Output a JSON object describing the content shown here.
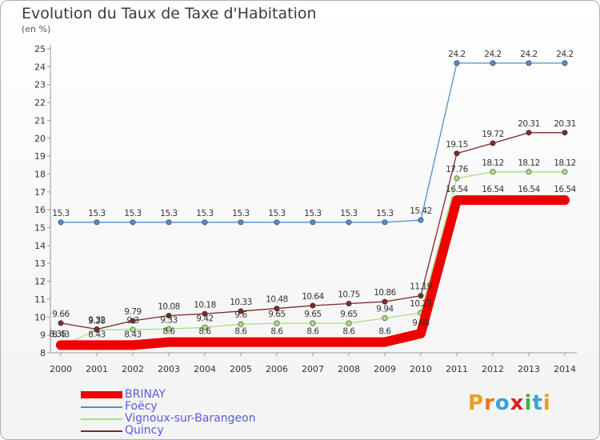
{
  "title": "Evolution du Taux de Taxe d'Habitation",
  "unit_label": "(en %)",
  "brand": {
    "text": "Proxiti",
    "letters": [
      "P",
      "r",
      "o",
      "x",
      "i",
      "t",
      "i"
    ],
    "colors": [
      "#e8a020",
      "#f07020",
      "#3aa0d8",
      "#d82020",
      "#40b040",
      "#3aa0d8",
      "#e8a020"
    ]
  },
  "chart_data": {
    "type": "line",
    "title": "Evolution du Taux de Taxe d'Habitation",
    "ylabel": "(en %)",
    "xlabel": "",
    "x": [
      "2000",
      "2001",
      "2002",
      "2003",
      "2004",
      "2005",
      "2006",
      "2007",
      "2008",
      "2009",
      "2010",
      "2011",
      "2012",
      "2013",
      "2014"
    ],
    "ylim": [
      8,
      25
    ],
    "yticks": [
      "8",
      "9",
      "10",
      "11",
      "12",
      "13",
      "14",
      "15",
      "16",
      "17",
      "18",
      "19",
      "20",
      "21",
      "22",
      "23",
      "24",
      "25"
    ],
    "grid": false,
    "legend_position": "bottom-left",
    "series": [
      {
        "name": "BRINAY",
        "color": "#ee0000",
        "values": [
          8.43,
          8.43,
          8.43,
          8.6,
          8.6,
          8.6,
          8.6,
          8.6,
          8.6,
          8.6,
          9.08,
          16.54,
          16.54,
          16.54,
          16.54
        ],
        "labels": [
          "8.43",
          "8.43",
          "8.43",
          "8.6",
          "8.6",
          "8.6",
          "8.6",
          "8.6",
          "8.6",
          "8.6",
          "9.08",
          "16.54",
          "16.54",
          "16.54",
          "16.54"
        ]
      },
      {
        "name": "Foëcy",
        "color": "#4f8fcf",
        "values": [
          15.3,
          15.3,
          15.3,
          15.3,
          15.3,
          15.3,
          15.3,
          15.3,
          15.3,
          15.3,
          15.42,
          24.2,
          24.2,
          24.2,
          24.2
        ],
        "labels": [
          "15.3",
          "15.3",
          "15.3",
          "15.3",
          "15.3",
          "15.3",
          "15.3",
          "15.3",
          "15.3",
          "15.3",
          "15.42",
          "24.2",
          "24.2",
          "24.2",
          "24.2"
        ]
      },
      {
        "name": "Vignoux-sur-Barangeon",
        "color": "#a8e080",
        "values": [
          8.35,
          9.28,
          9.3,
          9.33,
          9.42,
          9.6,
          9.65,
          9.65,
          9.65,
          9.94,
          10.23,
          17.76,
          18.12,
          18.12,
          18.12
        ],
        "labels": [
          "8.35",
          "9.28",
          "9.3",
          "9.33",
          "9.42",
          "9.6",
          "9.65",
          "9.65",
          "9.65",
          "9.94",
          "10.23",
          "17.76",
          "18.12",
          "18.12",
          "18.12"
        ]
      },
      {
        "name": "Quincy",
        "color": "#7a2a2a",
        "values": [
          9.66,
          9.32,
          9.79,
          10.08,
          10.18,
          10.33,
          10.48,
          10.64,
          10.75,
          10.86,
          11.19,
          19.15,
          19.72,
          20.31,
          20.31
        ],
        "labels": [
          "9.66",
          "9.32",
          "9.79",
          "10.08",
          "10.18",
          "10.33",
          "10.48",
          "10.64",
          "10.75",
          "10.86",
          "11.19",
          "19.15",
          "19.72",
          "20.31",
          "20.31"
        ]
      }
    ]
  }
}
